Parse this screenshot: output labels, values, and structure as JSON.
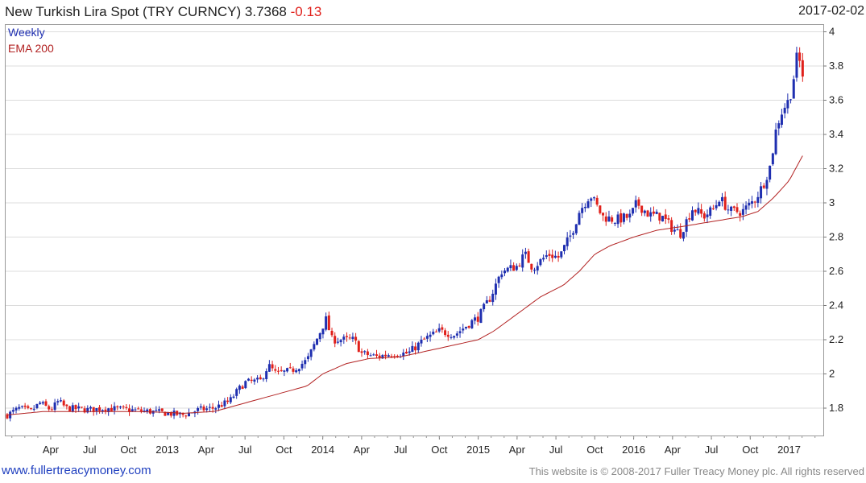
{
  "header": {
    "title": "New Turkish Lira Spot (TRY CURNCY) 3.7368",
    "change": "-0.13",
    "date": "2017-02-02"
  },
  "legend": {
    "series_label": "Weekly",
    "ema_label": "EMA 200"
  },
  "footer": {
    "site": "www.fullertreacymoney.com",
    "copyright": "This website is © 2008-2017 Fuller Treacy Money plc. All rights reserved"
  },
  "colors": {
    "up": "#1f2fb0",
    "down": "#e0201b",
    "ema": "#b22222",
    "grid": "#dcdcdc",
    "frame": "#9a9a9a"
  },
  "chart_data": {
    "type": "candlestick",
    "title": "New Turkish Lira Spot (TRY CURNCY) 3.7368 -0.13",
    "frequency": "Weekly",
    "ylim": [
      1.64,
      4.04
    ],
    "yticks": [
      1.8,
      2,
      2.2,
      2.4,
      2.6,
      2.8,
      3,
      3.2,
      3.4,
      3.6,
      3.8,
      4
    ],
    "xlim": [
      2011.96,
      2017.22
    ],
    "xticks": [
      {
        "t": 2012.25,
        "label": "Apr"
      },
      {
        "t": 2012.5,
        "label": "Jul"
      },
      {
        "t": 2012.75,
        "label": "Oct"
      },
      {
        "t": 2013.0,
        "label": "2013"
      },
      {
        "t": 2013.25,
        "label": "Apr"
      },
      {
        "t": 2013.5,
        "label": "Jul"
      },
      {
        "t": 2013.75,
        "label": "Oct"
      },
      {
        "t": 2014.0,
        "label": "2014"
      },
      {
        "t": 2014.25,
        "label": "Apr"
      },
      {
        "t": 2014.5,
        "label": "Jul"
      },
      {
        "t": 2014.75,
        "label": "Oct"
      },
      {
        "t": 2015.0,
        "label": "2015"
      },
      {
        "t": 2015.25,
        "label": "Apr"
      },
      {
        "t": 2015.5,
        "label": "Jul"
      },
      {
        "t": 2015.75,
        "label": "Oct"
      },
      {
        "t": 2016.0,
        "label": "2016"
      },
      {
        "t": 2016.25,
        "label": "Apr"
      },
      {
        "t": 2016.5,
        "label": "Jul"
      },
      {
        "t": 2016.75,
        "label": "Oct"
      },
      {
        "t": 2017.0,
        "label": "2017"
      }
    ],
    "price_anchors": [
      [
        2011.97,
        1.76
      ],
      [
        2012.05,
        1.8
      ],
      [
        2012.12,
        1.78
      ],
      [
        2012.18,
        1.83
      ],
      [
        2012.25,
        1.79
      ],
      [
        2012.3,
        1.84
      ],
      [
        2012.35,
        1.8
      ],
      [
        2012.5,
        1.79
      ],
      [
        2012.6,
        1.8
      ],
      [
        2012.75,
        1.79
      ],
      [
        2012.9,
        1.78
      ],
      [
        2013.0,
        1.77
      ],
      [
        2013.1,
        1.76
      ],
      [
        2013.2,
        1.79
      ],
      [
        2013.3,
        1.8
      ],
      [
        2013.4,
        1.84
      ],
      [
        2013.45,
        1.9
      ],
      [
        2013.5,
        1.95
      ],
      [
        2013.6,
        1.96
      ],
      [
        2013.65,
        2.05
      ],
      [
        2013.7,
        2.0
      ],
      [
        2013.8,
        2.02
      ],
      [
        2013.9,
        2.08
      ],
      [
        2013.95,
        2.18
      ],
      [
        2014.02,
        2.32
      ],
      [
        2014.06,
        2.2
      ],
      [
        2014.15,
        2.2
      ],
      [
        2014.2,
        2.2
      ],
      [
        2014.25,
        2.12
      ],
      [
        2014.35,
        2.1
      ],
      [
        2014.45,
        2.12
      ],
      [
        2014.55,
        2.12
      ],
      [
        2014.65,
        2.2
      ],
      [
        2014.75,
        2.25
      ],
      [
        2014.85,
        2.23
      ],
      [
        2014.95,
        2.3
      ],
      [
        2015.0,
        2.33
      ],
      [
        2015.08,
        2.45
      ],
      [
        2015.15,
        2.6
      ],
      [
        2015.25,
        2.63
      ],
      [
        2015.3,
        2.7
      ],
      [
        2015.35,
        2.62
      ],
      [
        2015.45,
        2.7
      ],
      [
        2015.52,
        2.68
      ],
      [
        2015.6,
        2.82
      ],
      [
        2015.65,
        2.95
      ],
      [
        2015.72,
        3.05
      ],
      [
        2015.8,
        2.92
      ],
      [
        2015.88,
        2.9
      ],
      [
        2015.98,
        2.92
      ],
      [
        2016.02,
        3.0
      ],
      [
        2016.1,
        2.93
      ],
      [
        2016.18,
        2.92
      ],
      [
        2016.25,
        2.85
      ],
      [
        2016.3,
        2.82
      ],
      [
        2016.38,
        2.97
      ],
      [
        2016.45,
        2.92
      ],
      [
        2016.52,
        2.97
      ],
      [
        2016.55,
        3.03
      ],
      [
        2016.62,
        2.95
      ],
      [
        2016.7,
        2.95
      ],
      [
        2016.78,
        3.02
      ],
      [
        2016.83,
        3.1
      ],
      [
        2016.88,
        3.22
      ],
      [
        2016.92,
        3.45
      ],
      [
        2016.96,
        3.55
      ],
      [
        2017.0,
        3.6
      ],
      [
        2017.02,
        3.68
      ],
      [
        2017.05,
        3.85
      ],
      [
        2017.07,
        3.82
      ],
      [
        2017.09,
        3.74
      ]
    ],
    "ema200_anchors": [
      [
        2011.97,
        1.76
      ],
      [
        2012.2,
        1.78
      ],
      [
        2012.5,
        1.78
      ],
      [
        2012.8,
        1.78
      ],
      [
        2013.0,
        1.775
      ],
      [
        2013.1,
        1.77
      ],
      [
        2013.3,
        1.78
      ],
      [
        2013.5,
        1.83
      ],
      [
        2013.7,
        1.88
      ],
      [
        2013.9,
        1.93
      ],
      [
        2014.0,
        2.0
      ],
      [
        2014.15,
        2.06
      ],
      [
        2014.3,
        2.09
      ],
      [
        2014.5,
        2.1
      ],
      [
        2014.7,
        2.14
      ],
      [
        2014.9,
        2.18
      ],
      [
        2015.0,
        2.2
      ],
      [
        2015.1,
        2.25
      ],
      [
        2015.25,
        2.35
      ],
      [
        2015.4,
        2.45
      ],
      [
        2015.55,
        2.52
      ],
      [
        2015.65,
        2.6
      ],
      [
        2015.75,
        2.7
      ],
      [
        2015.85,
        2.75
      ],
      [
        2016.0,
        2.8
      ],
      [
        2016.15,
        2.84
      ],
      [
        2016.3,
        2.86
      ],
      [
        2016.5,
        2.89
      ],
      [
        2016.7,
        2.92
      ],
      [
        2016.8,
        2.95
      ],
      [
        2016.9,
        3.03
      ],
      [
        2017.0,
        3.13
      ],
      [
        2017.09,
        3.28
      ]
    ],
    "last": 3.7368,
    "change": -0.13
  }
}
